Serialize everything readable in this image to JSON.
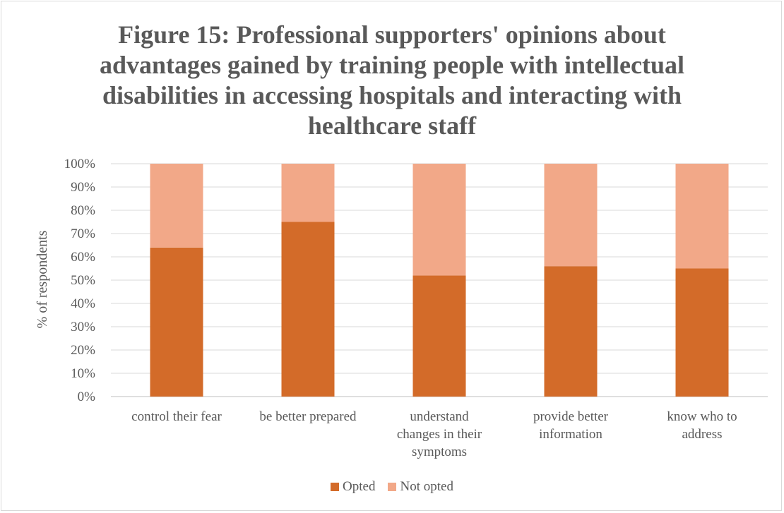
{
  "chart_data": {
    "type": "bar",
    "stacked": "percent",
    "title": "Figure 15: Professional supporters' opinions about advantages gained by training people with intellectual disabilities in accessing hospitals and interacting with healthcare staff",
    "xlabel": "",
    "ylabel": "% of respondents",
    "ylim": [
      0,
      100
    ],
    "yticks": [
      "0%",
      "10%",
      "20%",
      "30%",
      "40%",
      "50%",
      "60%",
      "70%",
      "80%",
      "90%",
      "100%"
    ],
    "categories": [
      [
        "control their fear"
      ],
      [
        "be better prepared"
      ],
      [
        "understand",
        "changes in their",
        "symptoms"
      ],
      [
        "provide better",
        "information"
      ],
      [
        "know who to",
        "address"
      ]
    ],
    "series": [
      {
        "name": "Opted",
        "color": "#d36b29",
        "values": [
          64,
          75,
          52,
          56,
          55
        ]
      },
      {
        "name": "Not opted",
        "color": "#f2a888",
        "values": [
          36,
          25,
          48,
          44,
          45
        ]
      }
    ],
    "grid": true,
    "legend_position": "bottom"
  }
}
